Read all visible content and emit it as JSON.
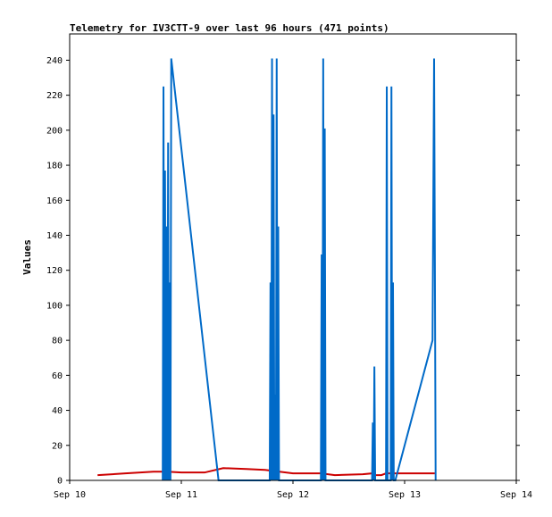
{
  "chart_data": {
    "type": "line",
    "title": "Telemetry for IV3CTT-9 over last 96 hours (471 points)",
    "xlabel": "",
    "ylabel": "Values",
    "x_type": "time",
    "xlim": [
      "2024-09-10T00:00",
      "2024-09-14T00:00"
    ],
    "ylim": [
      0,
      255
    ],
    "x_ticks": [
      {
        "t": "2024-09-10T00:00",
        "label": "Sep 10"
      },
      {
        "t": "2024-09-11T00:00",
        "label": "Sep 11"
      },
      {
        "t": "2024-09-12T00:00",
        "label": "Sep 12"
      },
      {
        "t": "2024-09-13T00:00",
        "label": "Sep 13"
      },
      {
        "t": "2024-09-14T00:00",
        "label": "Sep 14"
      }
    ],
    "y_ticks": [
      0,
      20,
      40,
      60,
      80,
      100,
      120,
      140,
      160,
      180,
      200,
      220,
      240
    ],
    "grid": false,
    "legend": "none",
    "series": [
      {
        "color": "#cc0000",
        "points": [
          [
            "2024-09-10T06:00",
            3
          ],
          [
            "2024-09-10T12:00",
            4
          ],
          [
            "2024-09-10T18:00",
            5
          ],
          [
            "2024-09-10T21:00",
            5
          ],
          [
            "2024-09-11T00:00",
            4.5
          ],
          [
            "2024-09-11T05:00",
            4.5
          ],
          [
            "2024-09-11T09:00",
            7
          ],
          [
            "2024-09-11T14:00",
            6.5
          ],
          [
            "2024-09-11T18:00",
            6
          ],
          [
            "2024-09-12T00:00",
            4
          ],
          [
            "2024-09-12T06:00",
            4
          ],
          [
            "2024-09-12T09:00",
            3
          ],
          [
            "2024-09-12T15:00",
            3.5
          ],
          [
            "2024-09-12T17:00",
            4
          ],
          [
            "2024-09-12T17:20",
            7
          ],
          [
            "2024-09-12T17:40",
            3
          ],
          [
            "2024-09-12T19:00",
            3
          ],
          [
            "2024-09-12T20:00",
            4
          ],
          [
            "2024-09-13T00:00",
            4
          ],
          [
            "2024-09-13T06:30",
            4
          ]
        ]
      },
      {
        "color": "#006ac8",
        "points": [
          [
            "2024-09-10T20:00",
            0
          ],
          [
            "2024-09-10T20:10",
            225
          ],
          [
            "2024-09-10T20:20",
            0
          ],
          [
            "2024-09-10T20:30",
            177
          ],
          [
            "2024-09-10T20:40",
            0
          ],
          [
            "2024-09-10T20:50",
            145
          ],
          [
            "2024-09-10T21:00",
            0
          ],
          [
            "2024-09-10T21:10",
            193
          ],
          [
            "2024-09-10T21:20",
            0
          ],
          [
            "2024-09-10T21:30",
            113
          ],
          [
            "2024-09-10T21:40",
            0
          ],
          [
            "2024-09-10T21:50",
            241
          ],
          [
            "2024-09-11T08:00",
            0
          ],
          [
            "2024-09-11T19:00",
            0
          ],
          [
            "2024-09-11T19:10",
            113
          ],
          [
            "2024-09-11T19:20",
            0
          ],
          [
            "2024-09-11T19:30",
            241
          ],
          [
            "2024-09-11T19:40",
            0
          ],
          [
            "2024-09-11T19:50",
            209
          ],
          [
            "2024-09-11T20:00",
            0
          ],
          [
            "2024-09-11T20:10",
            49
          ],
          [
            "2024-09-11T20:20",
            0
          ],
          [
            "2024-09-11T20:30",
            241
          ],
          [
            "2024-09-11T20:40",
            0
          ],
          [
            "2024-09-11T20:50",
            145
          ],
          [
            "2024-09-11T21:00",
            0
          ],
          [
            "2024-09-12T06:00",
            0
          ],
          [
            "2024-09-12T06:10",
            129
          ],
          [
            "2024-09-12T06:20",
            0
          ],
          [
            "2024-09-12T06:30",
            241
          ],
          [
            "2024-09-12T06:40",
            0
          ],
          [
            "2024-09-12T06:50",
            201
          ],
          [
            "2024-09-12T07:00",
            0
          ],
          [
            "2024-09-12T17:00",
            0
          ],
          [
            "2024-09-12T17:10",
            33
          ],
          [
            "2024-09-12T17:20",
            0
          ],
          [
            "2024-09-12T17:30",
            65
          ],
          [
            "2024-09-12T17:40",
            0
          ],
          [
            "2024-09-12T20:00",
            0
          ],
          [
            "2024-09-12T20:10",
            225
          ],
          [
            "2024-09-12T20:20",
            0
          ],
          [
            "2024-09-12T21:00",
            0
          ],
          [
            "2024-09-12T21:10",
            225
          ],
          [
            "2024-09-12T21:20",
            0
          ],
          [
            "2024-09-12T21:30",
            113
          ],
          [
            "2024-09-12T21:40",
            0
          ],
          [
            "2024-09-12T22:00",
            0
          ],
          [
            "2024-09-13T06:00",
            80
          ],
          [
            "2024-09-13T06:10",
            161
          ],
          [
            "2024-09-13T06:20",
            241
          ],
          [
            "2024-09-13T06:30",
            129
          ],
          [
            "2024-09-13T06:40",
            0
          ]
        ]
      }
    ]
  }
}
